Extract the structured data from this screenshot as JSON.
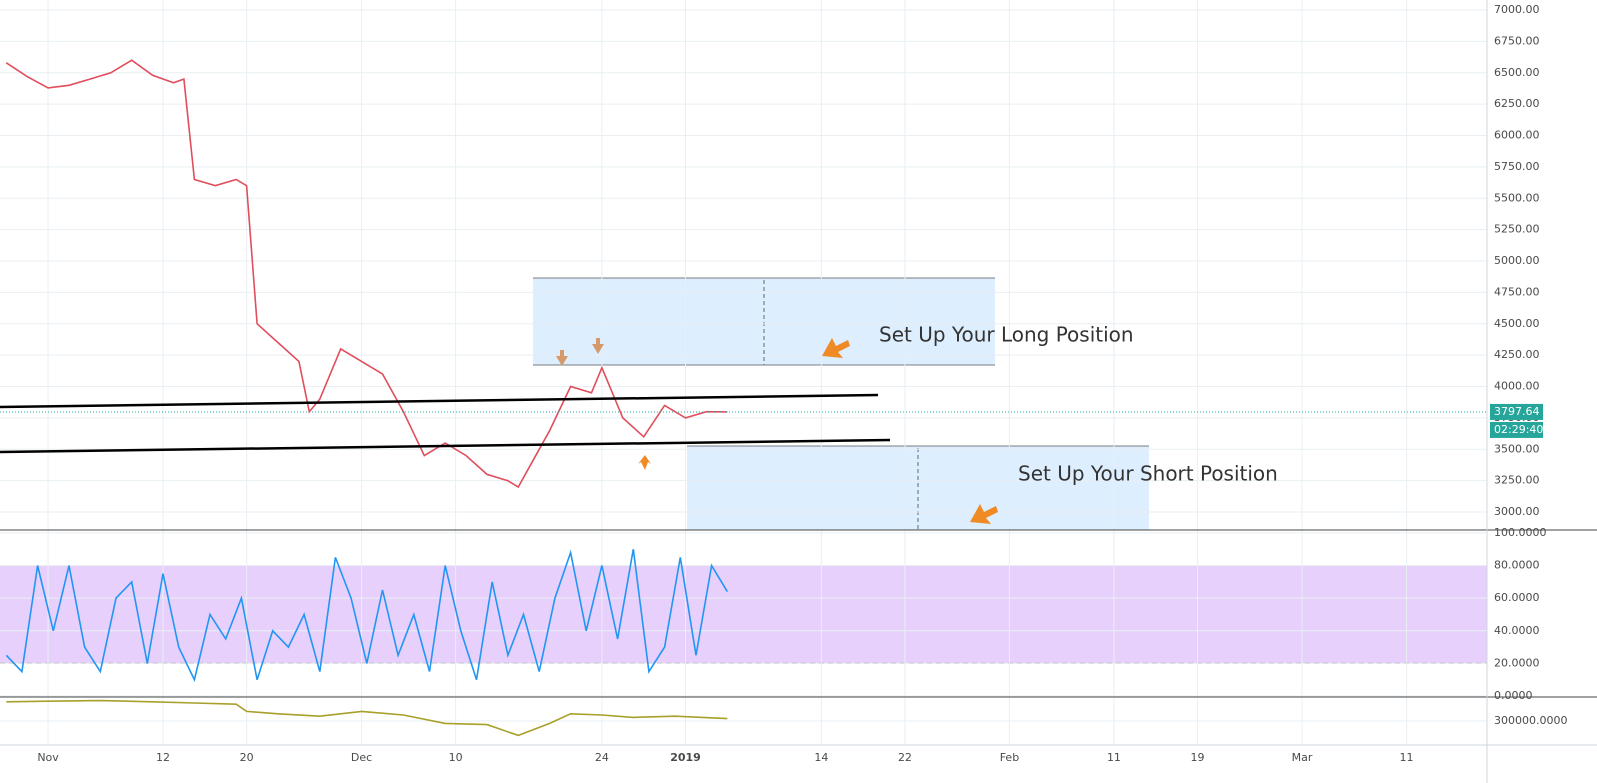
{
  "chart_data": [
    {
      "type": "line",
      "x": [
        -4,
        -2,
        0,
        2,
        4,
        6,
        8,
        10,
        12,
        13,
        14,
        16,
        18,
        19,
        20,
        22,
        24,
        25,
        26,
        28,
        30,
        32,
        34,
        36,
        38,
        40,
        42,
        44,
        45,
        47,
        48,
        50,
        52,
        53,
        55,
        57,
        59,
        61,
        63,
        65
      ],
      "values": [
        6580,
        6470,
        6380,
        6400,
        6450,
        6500,
        6600,
        6480,
        6420,
        6450,
        5650,
        5600,
        5650,
        5600,
        4500,
        4350,
        4200,
        3800,
        3900,
        4300,
        4200,
        4100,
        3800,
        3450,
        3550,
        3450,
        3300,
        3250,
        3200,
        3500,
        3650,
        4000,
        3950,
        4150,
        3750,
        3600,
        3850,
        3750,
        3800,
        3797.64
      ],
      "color": "#e04e5c",
      "xlim": [
        -4.6,
        137.7
      ],
      "ylim": [
        2857,
        7080
      ],
      "yticks": [
        {
          "value": 3000,
          "label": "3000.00"
        },
        {
          "value": 3250,
          "label": "3250.00"
        },
        {
          "value": 3500,
          "label": "3500.00"
        },
        {
          "value": 3750,
          "label": "3750.00"
        },
        {
          "value": 4000,
          "label": "4000.00"
        },
        {
          "value": 4250,
          "label": "4250.00"
        },
        {
          "value": 4500,
          "label": "4500.00"
        },
        {
          "value": 4750,
          "label": "4750.00"
        },
        {
          "value": 5000,
          "label": "5000.00"
        },
        {
          "value": 5250,
          "label": "5250.00"
        },
        {
          "value": 5500,
          "label": "5500.00"
        },
        {
          "value": 5750,
          "label": "5750.00"
        },
        {
          "value": 6000,
          "label": "6000.00"
        },
        {
          "value": 6250,
          "label": "6250.00"
        },
        {
          "value": 6500,
          "label": "6500.00"
        },
        {
          "value": 6750,
          "label": "6750.00"
        },
        {
          "value": 7000,
          "label": "7000.00"
        }
      ],
      "last_value": 3797.64,
      "countdown": "02:29:40",
      "annotations": [
        "Set Up Your Long Position",
        "Set Up Your Short Position"
      ],
      "grid": true
    },
    {
      "type": "line",
      "x": [
        -4,
        -2.5,
        -1,
        0.5,
        2,
        3.5,
        5,
        6.5,
        8,
        9.5,
        11,
        12.5,
        14,
        15.5,
        17,
        18.5,
        20,
        21.5,
        23,
        24.5,
        26,
        27.5,
        29,
        30.5,
        32,
        33.5,
        35,
        36.5,
        38,
        39.5,
        41,
        42.5,
        44,
        45.5,
        47,
        48.5,
        50,
        51.5,
        53,
        54.5,
        56,
        57.5,
        59,
        60.5,
        62,
        63.5,
        65
      ],
      "values": [
        25,
        15,
        80,
        40,
        80,
        30,
        15,
        60,
        70,
        20,
        75,
        30,
        10,
        50,
        35,
        60,
        10,
        40,
        30,
        50,
        15,
        85,
        60,
        20,
        65,
        25,
        50,
        15,
        80,
        40,
        10,
        70,
        25,
        50,
        15,
        60,
        88,
        40,
        80,
        35,
        90,
        15,
        30,
        85,
        25,
        80,
        64
      ],
      "color": "#2196f3",
      "xlim": [
        -4.6,
        137.7
      ],
      "ylim": [
        -0.6,
        101.8
      ],
      "yticks": [
        {
          "value": 0,
          "label": "0.0000"
        },
        {
          "value": 20,
          "label": "20.0000"
        },
        {
          "value": 40,
          "label": "40.0000"
        },
        {
          "value": 60,
          "label": "60.0000"
        },
        {
          "value": 80,
          "label": "80.0000"
        },
        {
          "value": 100,
          "label": "100.0000"
        }
      ],
      "band": [
        20,
        80
      ],
      "band_color": "#e1c4fb",
      "grid": true
    },
    {
      "type": "line",
      "x": [
        -4,
        0,
        5,
        10,
        14,
        18,
        19,
        22,
        26,
        30,
        34,
        38,
        42,
        45,
        48,
        50,
        53,
        56,
        60,
        65
      ],
      "values": [
        316000,
        316500,
        317000,
        316000,
        315000,
        314000,
        308000,
        306000,
        304000,
        308000,
        305000,
        298000,
        297000,
        288000,
        298000,
        306000,
        305000,
        303000,
        304000,
        302000
      ],
      "color": "#a8a02a",
      "xlim": [
        -4.6,
        137.7
      ],
      "ylim": [
        280000,
        320000
      ],
      "yticks": [
        {
          "value": 300000,
          "label": "300000.0000"
        }
      ],
      "xticks": [
        {
          "value": 0,
          "label": "Nov"
        },
        {
          "value": 11,
          "label": "12"
        },
        {
          "value": 19,
          "label": "20"
        },
        {
          "value": 30,
          "label": "Dec"
        },
        {
          "value": 39,
          "label": "10"
        },
        {
          "value": 53,
          "label": "24"
        },
        {
          "value": 61,
          "label": "2019"
        },
        {
          "value": 74,
          "label": "14"
        },
        {
          "value": 82,
          "label": "22"
        },
        {
          "value": 92,
          "label": "Feb"
        },
        {
          "value": 102,
          "label": "11"
        },
        {
          "value": 110,
          "label": "19"
        },
        {
          "value": 120,
          "label": "Mar"
        },
        {
          "value": 130,
          "label": "11"
        }
      ],
      "grid": true
    }
  ]
}
